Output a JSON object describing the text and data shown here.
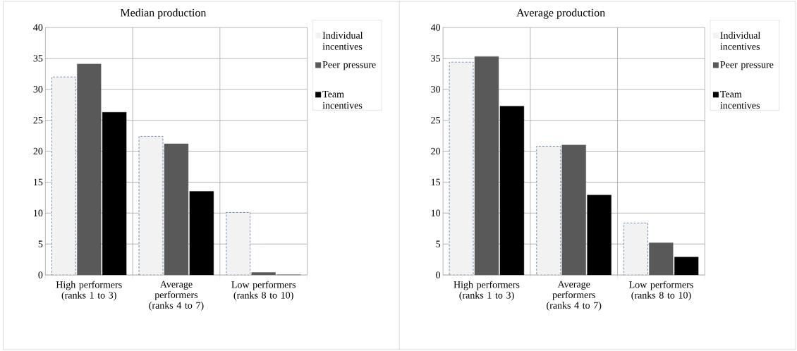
{
  "chart_data": [
    {
      "type": "bar",
      "title": "Median production",
      "categories": [
        "High performers (ranks 1 to 3)",
        "Average performers  (ranks 4 to 7)",
        "Low performers (ranks 8 to 10)"
      ],
      "ylim": [
        0,
        40
      ],
      "yticks": [
        0,
        5,
        10,
        15,
        20,
        25,
        30,
        35,
        40
      ],
      "grid": true,
      "legend": "right",
      "series": [
        {
          "name": "Individual incentives",
          "color": "#f2f2f2",
          "line_style": "dashed",
          "values": [
            32.0,
            22.4,
            10.1
          ]
        },
        {
          "name": "Peer pressure",
          "color": "#595959",
          "values": [
            34.1,
            21.2,
            0.4
          ]
        },
        {
          "name": "Team incentives",
          "color": "#000000",
          "values": [
            26.3,
            13.5,
            0
          ]
        }
      ]
    },
    {
      "type": "bar",
      "title": "Average production",
      "categories": [
        "High performers (ranks 1 to 3)",
        "Average performers  (ranks 4 to 7)",
        "Low performers (ranks 8 to 10)"
      ],
      "ylim": [
        0,
        40
      ],
      "yticks": [
        0,
        5,
        10,
        15,
        20,
        25,
        30,
        35,
        40
      ],
      "grid": true,
      "legend": "right",
      "series": [
        {
          "name": "Individual incentives",
          "color": "#f2f2f2",
          "line_style": "dashed",
          "values": [
            34.4,
            20.8,
            8.4
          ]
        },
        {
          "name": "Peer pressure",
          "color": "#595959",
          "values": [
            35.3,
            21.0,
            5.2
          ]
        },
        {
          "name": "Team incentives",
          "color": "#000000",
          "values": [
            27.3,
            12.9,
            2.9
          ]
        }
      ]
    }
  ]
}
